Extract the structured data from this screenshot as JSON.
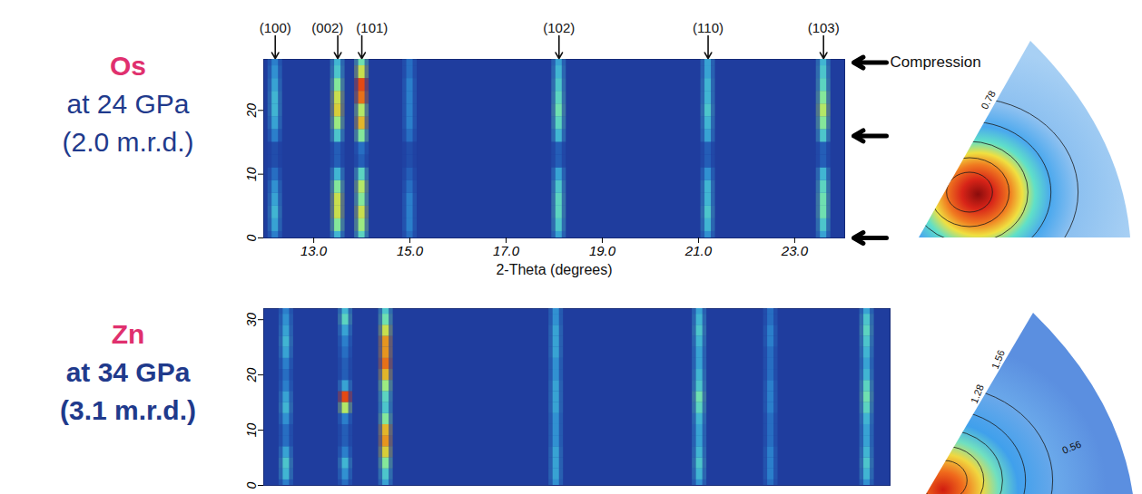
{
  "chart_data": [
    {
      "type": "heatmap",
      "title": "Os",
      "subtitle": [
        "at 24 GPa",
        "(2.0 m.r.d.)"
      ],
      "x_label": "2-Theta (degrees)",
      "xlim": [
        11.96,
        24.04
      ],
      "xticks": [
        {
          "value": 13,
          "label": "13.0"
        },
        {
          "value": 15,
          "label": "15.0"
        },
        {
          "value": 17,
          "label": "17.0"
        },
        {
          "value": 19,
          "label": "19.0"
        },
        {
          "value": 21,
          "label": "21.0"
        },
        {
          "value": 23,
          "label": "23.0"
        }
      ],
      "ylim": [
        0,
        28
      ],
      "yticks": [
        0,
        10,
        20
      ],
      "y": [
        0,
        2,
        4,
        6,
        8,
        10,
        12,
        14,
        16,
        18,
        20,
        22,
        24,
        26,
        28
      ],
      "intensity_range": [
        0,
        1
      ],
      "peaks": [
        {
          "label": "(100)",
          "x": 12.2,
          "intensity": [
            0.2,
            0.3,
            0.35,
            0.3,
            0.25,
            0.15,
            0.05,
            0.05,
            0.2,
            0.3,
            0.35,
            0.35,
            0.3,
            0.25,
            0.2
          ]
        },
        {
          "label": "(002)",
          "x": 13.5,
          "intensity": [
            0.35,
            0.55,
            0.7,
            0.7,
            0.55,
            0.35,
            0.1,
            0.1,
            0.4,
            0.6,
            0.75,
            0.7,
            0.55,
            0.4,
            0.35
          ]
        },
        {
          "label": "(101)",
          "x": 14.0,
          "intensity": [
            0.45,
            0.6,
            0.7,
            0.55,
            0.65,
            0.45,
            0.1,
            0.15,
            0.55,
            0.8,
            0.65,
            0.9,
            0.95,
            0.7,
            0.5
          ]
        },
        {
          "label": null,
          "x": 15.0,
          "intensity": [
            0.15,
            0.2,
            0.2,
            0.2,
            0.15,
            0.1,
            0.05,
            0.05,
            0.15,
            0.2,
            0.2,
            0.2,
            0.2,
            0.15,
            0.15
          ]
        },
        {
          "label": "(102)",
          "x": 18.1,
          "intensity": [
            0.3,
            0.4,
            0.45,
            0.45,
            0.4,
            0.3,
            0.1,
            0.1,
            0.35,
            0.45,
            0.5,
            0.45,
            0.4,
            0.35,
            0.3
          ]
        },
        {
          "label": "(110)",
          "x": 21.2,
          "intensity": [
            0.25,
            0.35,
            0.4,
            0.35,
            0.35,
            0.25,
            0.1,
            0.1,
            0.3,
            0.35,
            0.4,
            0.35,
            0.35,
            0.3,
            0.3
          ]
        },
        {
          "label": "(103)",
          "x": 23.6,
          "intensity": [
            0.3,
            0.4,
            0.5,
            0.5,
            0.45,
            0.35,
            0.1,
            0.1,
            0.4,
            0.55,
            0.65,
            0.55,
            0.45,
            0.4,
            0.35
          ]
        }
      ],
      "annotation": "Compression",
      "compression_arrows": [
        27.5,
        16,
        0
      ],
      "pole_figure": {
        "contour_labels": [
          0.78
        ]
      }
    },
    {
      "type": "heatmap",
      "title": "Zn",
      "subtitle": [
        "at 34 GPa",
        "(3.1 m.r.d.)"
      ],
      "tick_labels": "y",
      "xlim": [
        11.96,
        24.98
      ],
      "ylim": [
        0,
        32
      ],
      "yticks": [
        0,
        10,
        20,
        30
      ],
      "y": [
        0,
        2,
        4,
        6,
        8,
        10,
        12,
        14,
        16,
        18,
        20,
        22,
        24,
        26,
        28,
        30,
        32
      ],
      "intensity_range": [
        0,
        1
      ],
      "peaks": [
        {
          "label": null,
          "x": 12.43,
          "intensity": [
            0.2,
            0.35,
            0.4,
            0.3,
            0.15,
            0.15,
            0.25,
            0.35,
            0.3,
            0.2,
            0.15,
            0.2,
            0.3,
            0.35,
            0.3,
            0.25,
            0.2
          ]
        },
        {
          "label": null,
          "x": 13.66,
          "intensity": [
            0.15,
            0.25,
            0.35,
            0.2,
            0.1,
            0.1,
            0.2,
            0.65,
            0.95,
            0.3,
            0.1,
            0.1,
            0.15,
            0.2,
            0.3,
            0.45,
            0.35
          ]
        },
        {
          "label": null,
          "x": 14.5,
          "intensity": [
            0.3,
            0.4,
            0.55,
            0.75,
            0.85,
            0.8,
            0.55,
            0.4,
            0.45,
            0.6,
            0.8,
            0.9,
            0.85,
            0.85,
            0.7,
            0.5,
            0.4
          ]
        },
        {
          "label": null,
          "x": 18.04,
          "intensity": [
            0.25,
            0.3,
            0.3,
            0.3,
            0.25,
            0.25,
            0.25,
            0.3,
            0.3,
            0.3,
            0.25,
            0.25,
            0.3,
            0.3,
            0.3,
            0.25,
            0.25
          ]
        },
        {
          "label": null,
          "x": 21.02,
          "intensity": [
            0.25,
            0.35,
            0.4,
            0.35,
            0.3,
            0.3,
            0.35,
            0.45,
            0.5,
            0.4,
            0.35,
            0.3,
            0.3,
            0.35,
            0.4,
            0.35,
            0.3
          ]
        },
        {
          "label": null,
          "x": 22.5,
          "intensity": [
            0.15,
            0.2,
            0.2,
            0.2,
            0.15,
            0.15,
            0.15,
            0.2,
            0.2,
            0.2,
            0.15,
            0.15,
            0.15,
            0.2,
            0.2,
            0.15,
            0.15
          ]
        },
        {
          "label": null,
          "x": 24.5,
          "intensity": [
            0.25,
            0.35,
            0.4,
            0.35,
            0.3,
            0.3,
            0.35,
            0.45,
            0.5,
            0.45,
            0.35,
            0.3,
            0.35,
            0.4,
            0.45,
            0.4,
            0.3
          ]
        }
      ],
      "pole_figure": {
        "contour_labels": [
          1.56,
          1.28,
          0.56
        ]
      }
    }
  ]
}
